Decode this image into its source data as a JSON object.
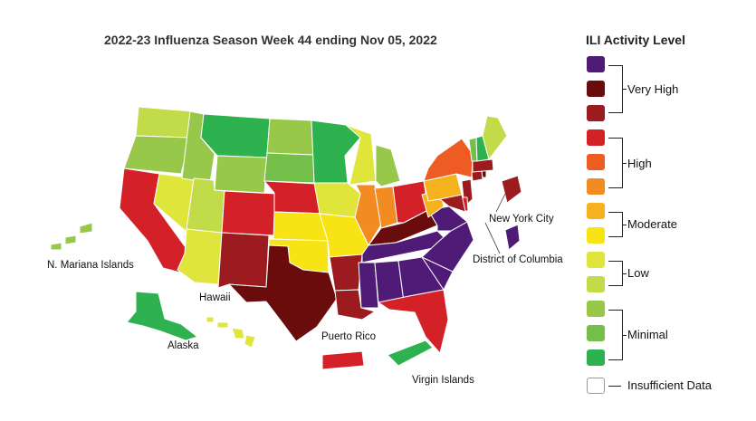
{
  "title": "2022-23 Influenza Season Week 44 ending Nov 05, 2022",
  "legend": {
    "title": "ILI Activity Level",
    "levels": [
      {
        "level": 13,
        "color": "#4f1b76"
      },
      {
        "level": 12,
        "color": "#6b0c0c"
      },
      {
        "level": 11,
        "color": "#9b1b1f"
      },
      {
        "level": 10,
        "color": "#d42128"
      },
      {
        "level": 9,
        "color": "#ee5b23"
      },
      {
        "level": 8,
        "color": "#f28b22"
      },
      {
        "level": 7,
        "color": "#f6b11f"
      },
      {
        "level": 6,
        "color": "#f8e314"
      },
      {
        "level": 5,
        "color": "#dfe53b"
      },
      {
        "level": 4,
        "color": "#c2dc49"
      },
      {
        "level": 3,
        "color": "#97c84a"
      },
      {
        "level": 2,
        "color": "#73bf4a"
      },
      {
        "level": 1,
        "color": "#2eb24f"
      }
    ],
    "groups": [
      "Very High",
      "High",
      "Moderate",
      "Low",
      "Minimal"
    ],
    "insufficient": "Insufficient Data"
  },
  "labels": {
    "nyc": "New York City",
    "dc": "District of Columbia",
    "nmi": "N. Mariana Islands",
    "hawaii": "Hawaii",
    "alaska": "Alaska",
    "pr": "Puerto Rico",
    "vi": "Virgin Islands"
  },
  "map_data": {
    "WA": "#c2dc49",
    "OR": "#97c84a",
    "CA": "#d42128",
    "NV": "#dfe53b",
    "ID": "#97c84a",
    "MT": "#2eb24f",
    "WY": "#97c84a",
    "UT": "#c2dc49",
    "AZ": "#dfe53b",
    "CO": "#d42128",
    "NM": "#9b1b1f",
    "ND": "#97c84a",
    "SD": "#73bf4a",
    "NE": "#d42128",
    "KS": "#f8e314",
    "OK": "#f8e314",
    "TX": "#6b0c0c",
    "MN": "#2eb24f",
    "IA": "#dfe53b",
    "MO": "#f8e314",
    "AR": "#9b1b1f",
    "LA": "#9b1b1f",
    "WI": "#dfe53b",
    "IL": "#f28b22",
    "MI": "#97c84a",
    "IN": "#f28b22",
    "OH": "#d42128",
    "KY": "#6b0c0c",
    "TN": "#4f1b76",
    "MS": "#4f1b76",
    "AL": "#4f1b76",
    "GA": "#4f1b76",
    "FL": "#d42128",
    "SC": "#4f1b76",
    "NC": "#4f1b76",
    "VA": "#4f1b76",
    "WV": "#f6b11f",
    "PA": "#f6b11f",
    "NY": "#ee5b23",
    "NJ": "#9b1b1f",
    "DE": "#d42128",
    "MD": "#9b1b1f",
    "CT": "#9b1b1f",
    "RI": "#6b0c0c",
    "MA": "#9b1b1f",
    "VT": "#73bf4a",
    "NH": "#2eb24f",
    "ME": "#c2dc49",
    "AK": "#2eb24f",
    "HI": "#dfe53b",
    "PR": "#d42128",
    "VI": "#2eb24f",
    "NMI": "#97c84a",
    "NYC": "#9b1b1f",
    "DC": "#4f1b76"
  }
}
